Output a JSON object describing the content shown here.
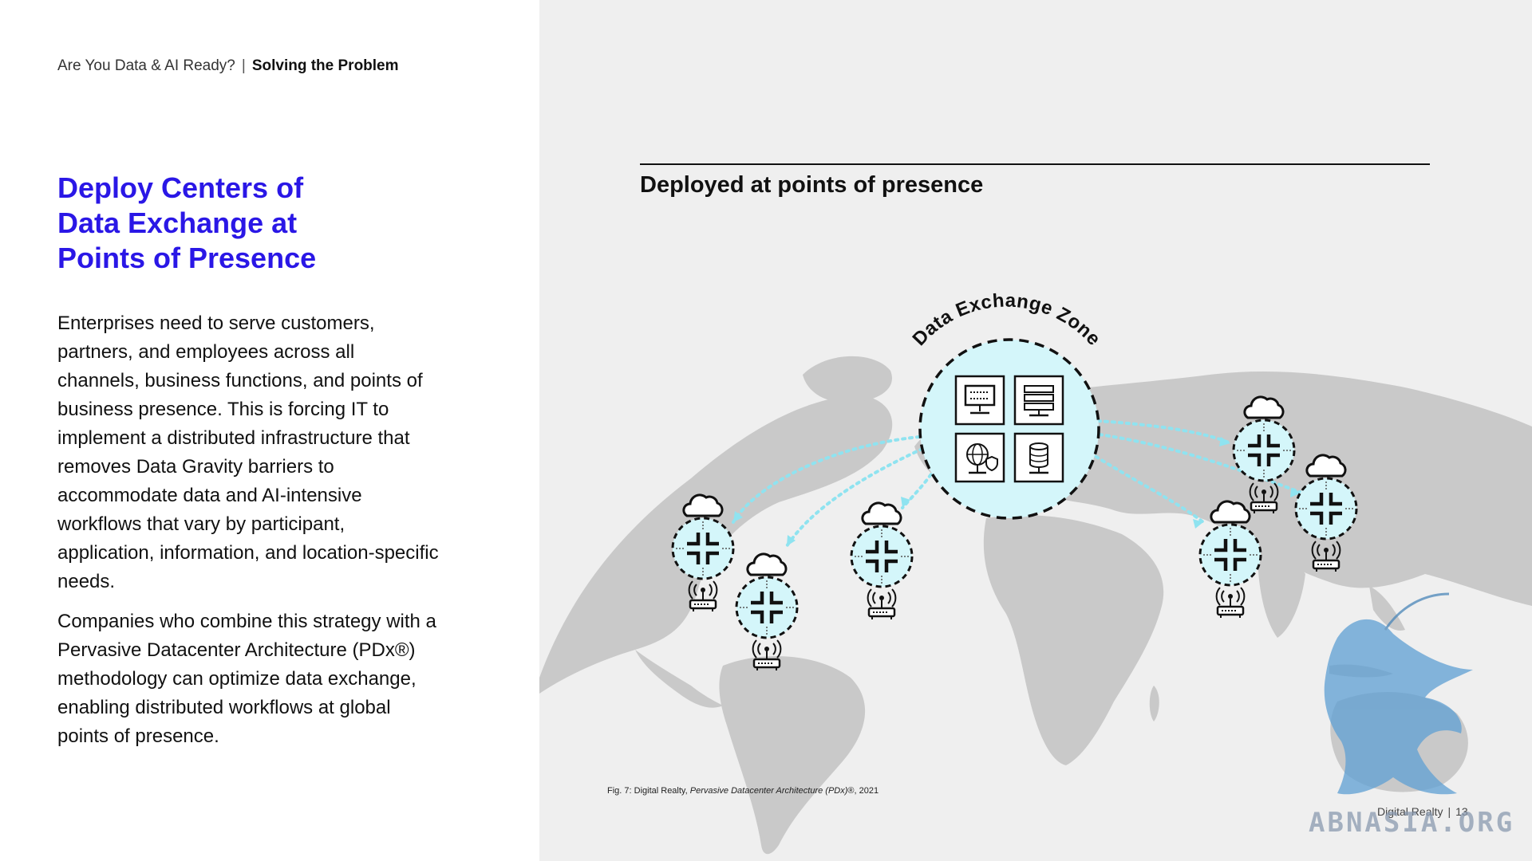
{
  "header": {
    "breadcrumb_doc": "Are You Data & AI Ready?",
    "breadcrumb_separator": "|",
    "breadcrumb_section": "Solving the Problem"
  },
  "main": {
    "heading_lines": [
      "Deploy Centers of",
      "Data Exchange at",
      "Points of Presence"
    ],
    "paragraph_1": "Enterprises need to serve customers, partners, and employees across all channels, business functions, and points of business presence. This is forcing IT to implement a distributed infrastructure that removes Data Gravity barriers to accommodate data and AI-intensive workflows that vary by participant, application, information, and location-specific needs.",
    "paragraph_2": "Companies who combine this strategy with a Pervasive Datacenter Architecture (PDx®) methodology can optimize data exchange, enabling distributed workflows at global points of presence."
  },
  "figure": {
    "title": "Deployed at points of presence",
    "zone_label": "Data Exchange Zone",
    "caption_prefix": "Fig. 7: Digital Realty, ",
    "caption_italic": "Pervasive Datacenter Architecture (PDx)",
    "caption_suffix": "®, 2021"
  },
  "footer": {
    "company": "Digital Realty",
    "separator": "|",
    "page_number": "13"
  },
  "watermark": {
    "text": "ABNASIA.ORG"
  },
  "colors": {
    "heading_accent": "#2a17e6",
    "panel_background": "#efefef",
    "map_land": "#c9c9c9",
    "node_fill": "#d4f6fa",
    "connector": "#8fe3f0"
  },
  "icons": [
    "cloud-icon",
    "router-icon",
    "server-icon",
    "globe-icon",
    "database-icon",
    "compress-arrows-icon"
  ]
}
